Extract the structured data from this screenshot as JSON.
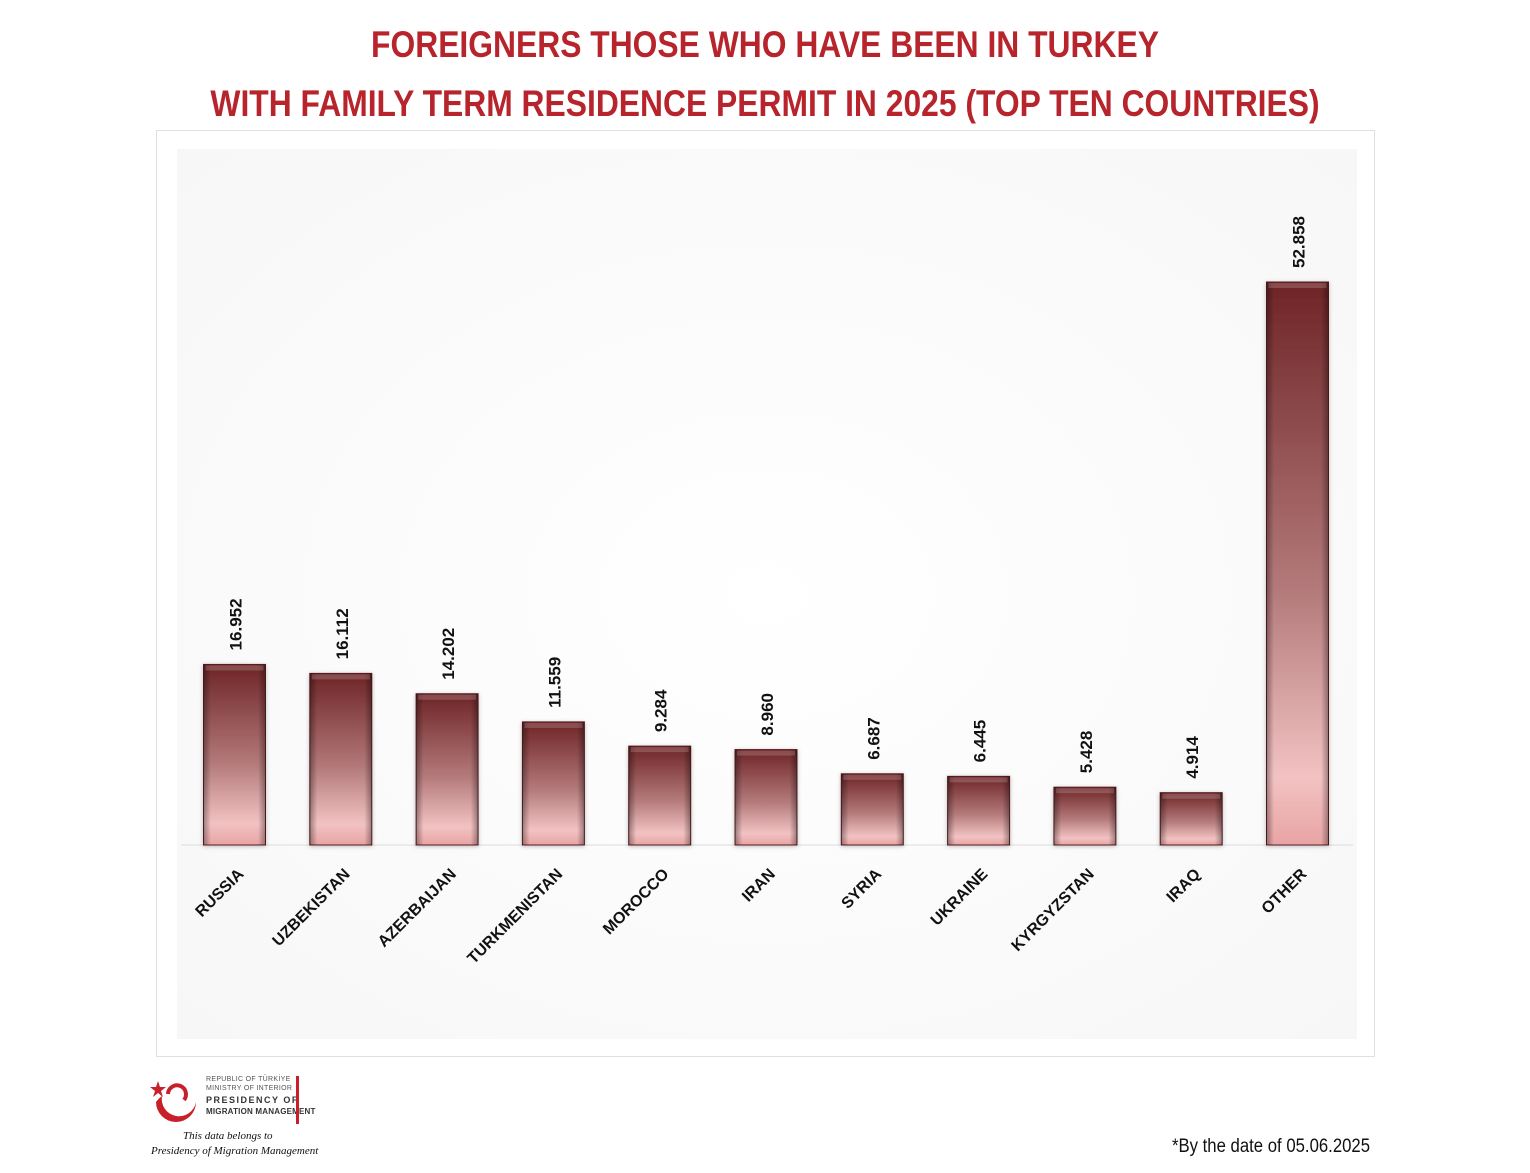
{
  "title": {
    "line1": "FOREIGNERS THOSE WHO HAVE BEEN IN TURKEY",
    "line2": "WITH FAMILY TERM RESIDENCE PERMIT IN 2025 (TOP TEN COUNTRIES)"
  },
  "chart_data": {
    "type": "bar",
    "categories": [
      "RUSSIA",
      "UZBEKISTAN",
      "AZERBAIJAN",
      "TURKMENISTAN",
      "MOROCCO",
      "IRAN",
      "SYRIA",
      "UKRAINE",
      "KYRGYZSTAN",
      "IRAQ",
      "OTHER"
    ],
    "values": [
      16952,
      16112,
      14202,
      11559,
      9284,
      8960,
      6687,
      6445,
      5428,
      4914,
      52858
    ],
    "data_labels": [
      "16.952",
      "16.112",
      "14.202",
      "11.559",
      "9.284",
      "8.960",
      "6.687",
      "6.445",
      "5.428",
      "4.914",
      "52.858"
    ],
    "title": "FOREIGNERS THOSE WHO HAVE BEEN IN TURKEY WITH FAMILY TERM RESIDENCE PERMIT IN 2025 (TOP TEN COUNTRIES)",
    "xlabel": "",
    "ylabel": "",
    "ylim": [
      0,
      60000
    ],
    "grid": false,
    "legend": "none",
    "bar_color": "#8a3a3a"
  },
  "logo": {
    "line1": "REPUBLIC OF TÜRKİYE",
    "line2": "MINISTRY OF INTERIOR",
    "line3": "PRESIDENCY OF",
    "line4": "MIGRATION MANAGEMENT",
    "credit1": "This data belongs to",
    "credit2": "Presidency of Migration Management",
    "color": "#c8202a"
  },
  "footnote": "*By the date of  05.06.2025"
}
